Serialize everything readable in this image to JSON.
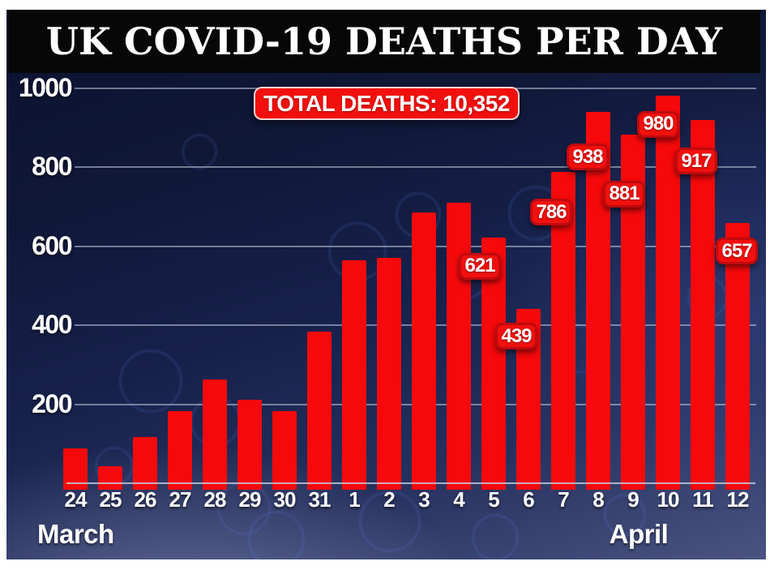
{
  "banner": {
    "title": "UK COVID-19 DEATHS PER DAY",
    "bg_color": "#070708",
    "text_color": "#ffffff"
  },
  "total_badge": {
    "label": "TOTAL DEATHS: 10,352"
  },
  "chart_data": {
    "type": "bar",
    "title": "UK COVID-19 DEATHS PER DAY",
    "subtitle": "TOTAL DEATHS: 10,352",
    "categories": [
      "24",
      "25",
      "26",
      "27",
      "28",
      "29",
      "30",
      "31",
      "1",
      "2",
      "3",
      "4",
      "5",
      "6",
      "7",
      "8",
      "9",
      "10",
      "11",
      "12"
    ],
    "values": [
      87,
      41,
      115,
      181,
      260,
      209,
      180,
      381,
      563,
      569,
      684,
      708,
      621,
      439,
      786,
      938,
      881,
      980,
      917,
      657
    ],
    "month_groups": [
      {
        "label": "March",
        "days": [
          "24",
          "25",
          "26",
          "27",
          "28",
          "29",
          "30",
          "31"
        ]
      },
      {
        "label": "April",
        "days": [
          "1",
          "2",
          "3",
          "4",
          "5",
          "6",
          "7",
          "8",
          "9",
          "10",
          "11",
          "12"
        ]
      }
    ],
    "labeled_points": [
      {
        "index": 12,
        "date": "April 5",
        "value": 621
      },
      {
        "index": 13,
        "date": "April 6",
        "value": 439
      },
      {
        "index": 14,
        "date": "April 7",
        "value": 786
      },
      {
        "index": 15,
        "date": "April 8",
        "value": 938
      },
      {
        "index": 16,
        "date": "April 9",
        "value": 881
      },
      {
        "index": 17,
        "date": "April 10",
        "value": 980
      },
      {
        "index": 18,
        "date": "April 11",
        "value": 917
      },
      {
        "index": 19,
        "date": "April 12",
        "value": 657
      }
    ],
    "xlabel": "",
    "ylabel": "",
    "ylim": [
      0,
      1000
    ],
    "yticks": [
      200,
      400,
      600,
      800,
      1000
    ],
    "grid": true,
    "legend": "none",
    "bar_color": "#f5090b",
    "badge_color": "#f2100e",
    "axis_text_color": "#ffffff"
  }
}
